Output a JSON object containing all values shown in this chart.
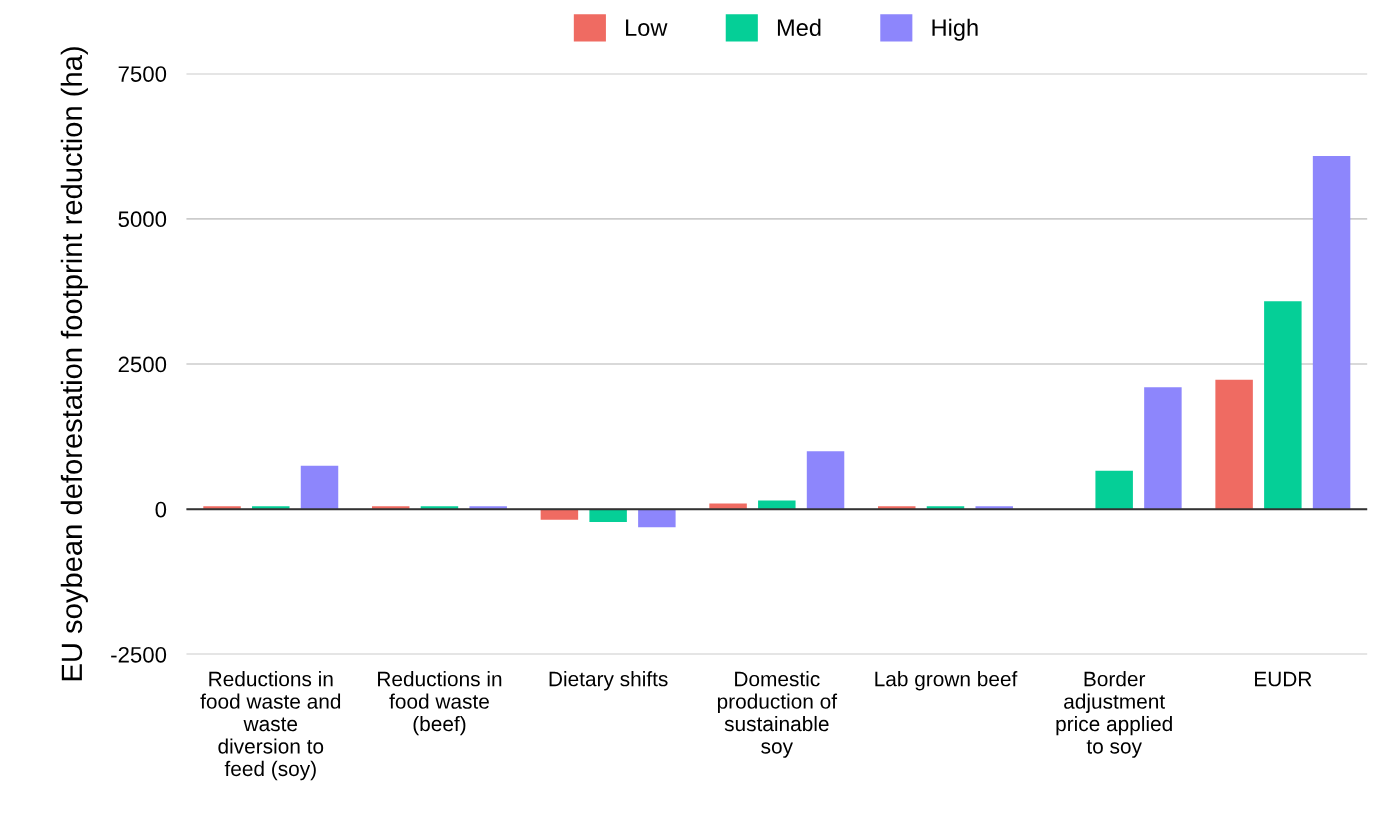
{
  "chart_data": {
    "type": "bar",
    "categories": [
      "Reductions in food waste and waste diversion to feed (soy)",
      "Reductions in food waste (beef)",
      "Dietary shifts",
      "Domestic production of sustainable soy",
      "Lab grown beef",
      "Border adjustment price applied to soy",
      "EUDR"
    ],
    "series": [
      {
        "name": "Low",
        "color": "#ef6b62",
        "values": [
          50,
          50,
          -180,
          100,
          50,
          0,
          2230
        ]
      },
      {
        "name": "Med",
        "color": "#05cf97",
        "values": [
          50,
          50,
          -220,
          150,
          50,
          660,
          3580
        ]
      },
      {
        "name": "High",
        "color": "#8d86fc",
        "values": [
          750,
          50,
          -310,
          1000,
          50,
          2100,
          6080
        ]
      }
    ],
    "ylabel": "EU soybean deforestation footprint reduction (ha)",
    "ylim": [
      -2500,
      7500
    ],
    "yticks": [
      -2500,
      0,
      2500,
      5000,
      7500
    ],
    "grid": "y",
    "legend": "top"
  }
}
